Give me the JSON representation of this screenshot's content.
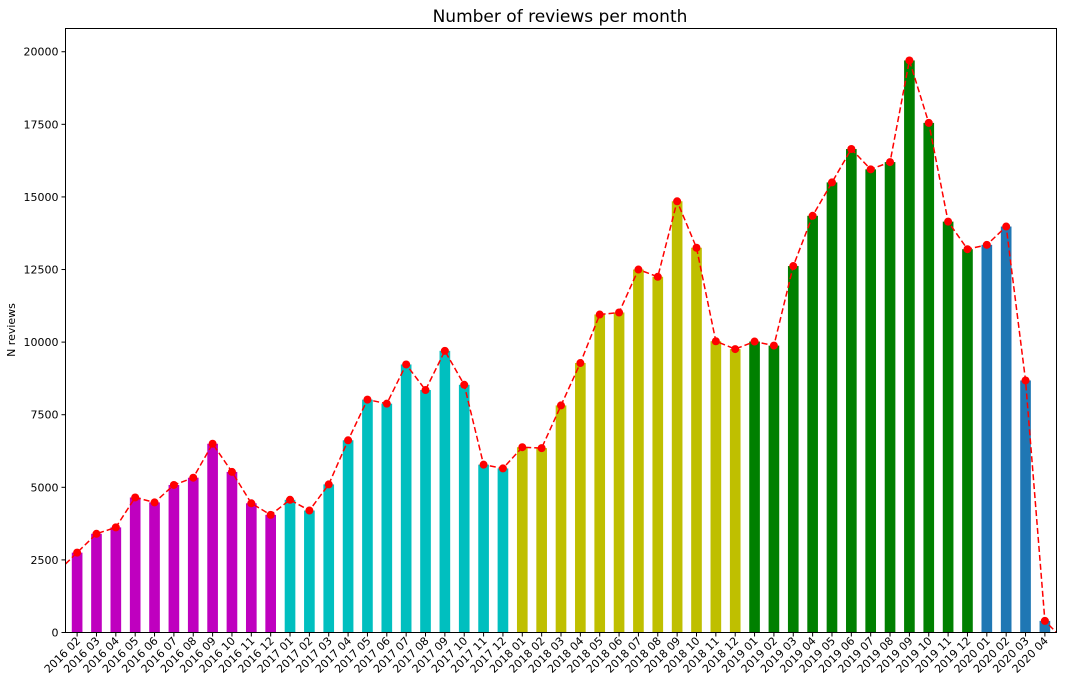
{
  "chart_data": {
    "type": "bar",
    "title": "Number of reviews per month",
    "xlabel": "",
    "ylabel": "N reviews",
    "ylim": [
      0,
      20800
    ],
    "yticks": [
      0,
      2500,
      5000,
      7500,
      10000,
      12500,
      15000,
      17500,
      20000
    ],
    "grid": false,
    "categories": [
      "2016 02",
      "2016 03",
      "2016 04",
      "2016 05",
      "2016 06",
      "2016 07",
      "2016 08",
      "2016 09",
      "2016 10",
      "2016 11",
      "2016 12",
      "2017 01",
      "2017 02",
      "2017 03",
      "2017 04",
      "2017 05",
      "2017 06",
      "2017 07",
      "2017 08",
      "2017 09",
      "2017 10",
      "2017 11",
      "2017 12",
      "2018 01",
      "2018 02",
      "2018 03",
      "2018 04",
      "2018 05",
      "2018 06",
      "2018 07",
      "2018 08",
      "2018 09",
      "2018 10",
      "2018 11",
      "2018 12",
      "2019 01",
      "2019 02",
      "2019 03",
      "2019 04",
      "2019 05",
      "2019 06",
      "2019 07",
      "2019 08",
      "2019 09",
      "2019 10",
      "2019 11",
      "2019 12",
      "2020 01",
      "2020 02",
      "2020 03",
      "2020 04"
    ],
    "values": [
      2750,
      3400,
      3620,
      4650,
      4480,
      5080,
      5330,
      6500,
      5530,
      4450,
      4050,
      4570,
      4200,
      5100,
      6620,
      8020,
      7880,
      9230,
      8350,
      9700,
      8530,
      5780,
      5650,
      6380,
      6350,
      7820,
      9280,
      10950,
      11020,
      12500,
      12250,
      14850,
      13250,
      10030,
      9760,
      10020,
      9880,
      12620,
      14350,
      15500,
      16650,
      15950,
      16200,
      19700,
      17550,
      14150,
      13200,
      13350,
      13980,
      8680,
      400
    ],
    "bar_colors": {
      "2016": "#bf00bf",
      "2017": "#00bfbf",
      "2018": "#bfbf00",
      "2019": "#008000",
      "2020": "#1f77b4"
    },
    "trend_line": {
      "color": "#ff0000",
      "style": "dashed",
      "marker": "circle"
    }
  }
}
